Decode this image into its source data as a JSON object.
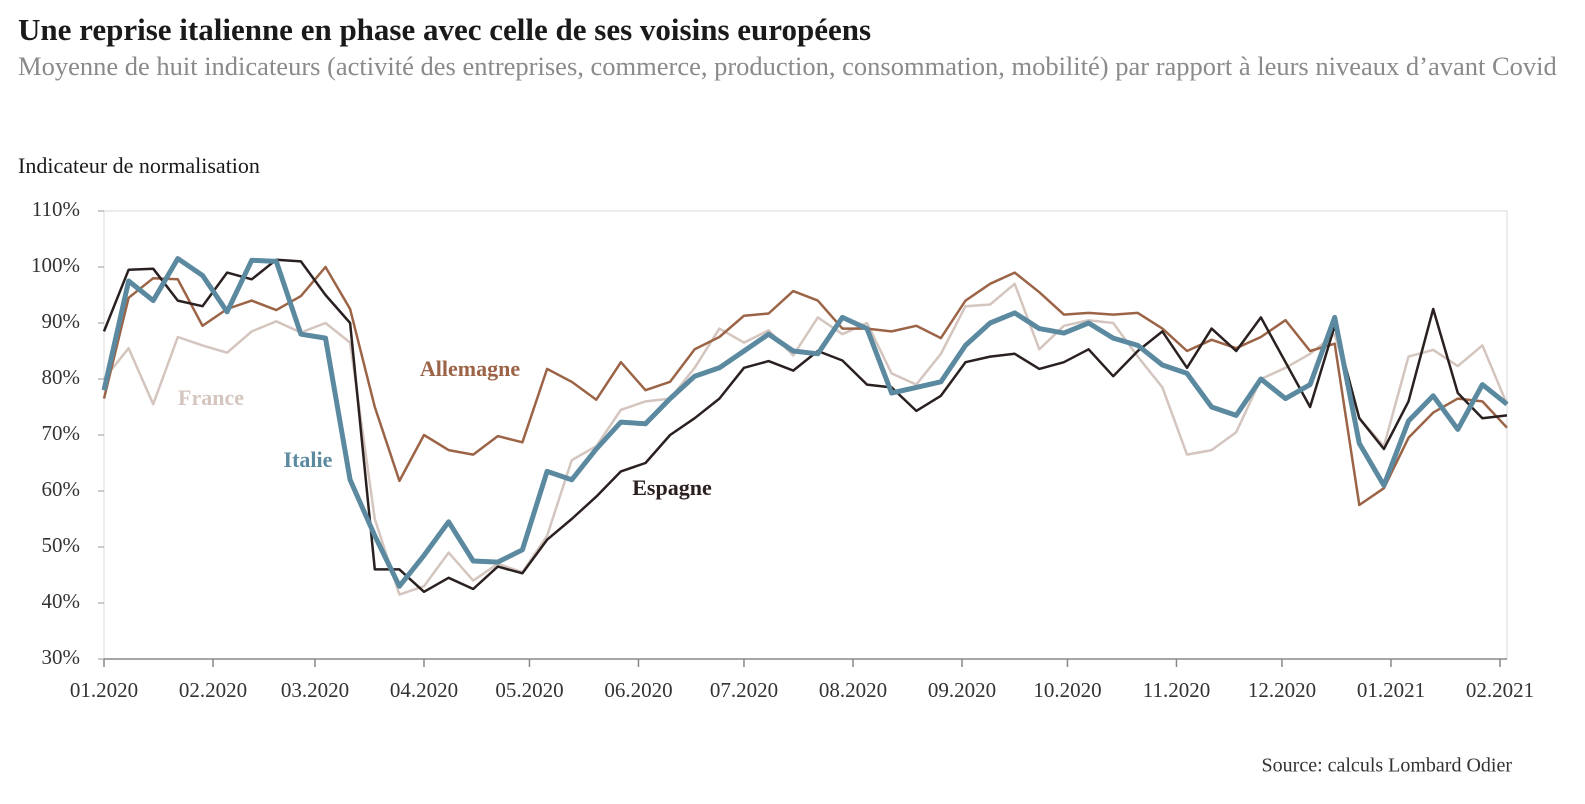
{
  "chart_data": {
    "type": "line",
    "title": "Une reprise italienne en phase avec celle de ses voisins européens",
    "subtitle": "Moyenne de huit indicateurs (activité des entreprises, commerce, production, consommation, mobilité) par rapport à leurs niveaux d’avant Covid",
    "y_axis_label": "Indicateur de normalisation",
    "source": "Source: calculs Lombard Odier",
    "x": [
      0,
      7,
      14,
      21,
      28,
      35,
      42,
      49,
      56,
      63,
      70,
      77,
      84,
      91,
      98,
      105,
      112,
      119,
      126,
      133,
      140,
      147,
      154,
      161,
      168,
      175,
      182,
      189,
      196,
      203,
      210,
      217,
      224,
      231,
      238,
      245,
      252,
      259,
      266,
      273,
      280,
      287,
      294,
      301,
      308,
      315,
      322,
      329,
      336,
      343,
      350,
      357,
      364,
      371,
      378,
      385,
      392,
      399
    ],
    "xlim": [
      0,
      399
    ],
    "xticks": [
      {
        "value": 0,
        "label": "01.2020"
      },
      {
        "value": 31,
        "label": "02.2020"
      },
      {
        "value": 60,
        "label": "03.2020"
      },
      {
        "value": 91,
        "label": "04.2020"
      },
      {
        "value": 121,
        "label": "05.2020"
      },
      {
        "value": 152,
        "label": "06.2020"
      },
      {
        "value": 182,
        "label": "07.2020"
      },
      {
        "value": 213,
        "label": "08.2020"
      },
      {
        "value": 244,
        "label": "09.2020"
      },
      {
        "value": 274,
        "label": "10.2020"
      },
      {
        "value": 305,
        "label": "11.2020"
      },
      {
        "value": 335,
        "label": "12.2020"
      },
      {
        "value": 366,
        "label": "01.2021"
      },
      {
        "value": 397,
        "label": "02.2021"
      }
    ],
    "ylim": [
      30,
      110
    ],
    "yticks": [
      {
        "value": 30,
        "label": "30%"
      },
      {
        "value": 40,
        "label": "40%"
      },
      {
        "value": 50,
        "label": "50%"
      },
      {
        "value": 60,
        "label": "60%"
      },
      {
        "value": 70,
        "label": "70%"
      },
      {
        "value": 80,
        "label": "80%"
      },
      {
        "value": 90,
        "label": "90%"
      },
      {
        "value": 100,
        "label": "100%"
      },
      {
        "value": 110,
        "label": "110%"
      }
    ],
    "series": [
      {
        "name": "France",
        "color": "#d4c5bf",
        "values": [
          80,
          85.5,
          75.5,
          87.5,
          86,
          84.7,
          88.5,
          90.3,
          88.3,
          90,
          86.5,
          55,
          41.5,
          43,
          49,
          44,
          47,
          45.5,
          52,
          65.5,
          68,
          74.5,
          76,
          76.5,
          82,
          89,
          86.5,
          88.7,
          84.2,
          91,
          88,
          90,
          81,
          79,
          84.5,
          93,
          93.3,
          97,
          85.3,
          89.5,
          90.5,
          90,
          84,
          78.5,
          66.5,
          67.3,
          70.5,
          80,
          82,
          84.5,
          88,
          73,
          68,
          84,
          85.2,
          82.3,
          86,
          75.5
        ]
      },
      {
        "name": "Allemagne",
        "color": "#9c6447",
        "values": [
          76.5,
          94.5,
          98,
          97.8,
          89.5,
          92.5,
          94,
          92.3,
          94.8,
          100,
          92.5,
          75,
          61.8,
          70,
          67.3,
          66.5,
          69.8,
          68.7,
          81.8,
          79.5,
          76.3,
          83,
          78,
          79.5,
          85.3,
          87.5,
          91.3,
          91.7,
          95.7,
          94,
          89,
          89,
          88.5,
          89.5,
          87.3,
          94,
          97,
          99,
          95.5,
          91.5,
          91.8,
          91.5,
          91.8,
          89,
          85,
          87,
          85.5,
          87.5,
          90.5,
          85,
          86.3,
          57.5,
          60.5,
          69.5,
          74,
          76.5,
          76,
          71.3
        ]
      },
      {
        "name": "Espagne",
        "color": "#2a2020",
        "values": [
          88.5,
          99.5,
          99.7,
          94,
          93,
          99,
          97.8,
          101.3,
          101,
          95,
          90,
          46,
          46,
          42,
          44.5,
          42.5,
          46.5,
          45.3,
          51.3,
          55,
          59,
          63.5,
          65,
          70,
          73,
          76.5,
          82,
          83.2,
          81.5,
          85,
          83.3,
          79,
          78.5,
          74.3,
          77,
          83,
          84,
          84.5,
          81.8,
          83,
          85.3,
          80.5,
          85,
          88.5,
          82,
          89,
          85,
          91,
          83,
          75,
          89.5,
          73,
          67.5,
          76,
          92.5,
          77.5,
          73,
          73.5
        ]
      },
      {
        "name": "Italie",
        "color": "#5b8aa0",
        "values": [
          78,
          97.5,
          94,
          101.5,
          98.5,
          92,
          101.2,
          101,
          88,
          87.3,
          62,
          52,
          43,
          48.5,
          54.5,
          47.5,
          47.3,
          49.5,
          63.5,
          62,
          67.5,
          72.3,
          72,
          76.5,
          80.5,
          82,
          85,
          88,
          85,
          84.5,
          91,
          89,
          77.5,
          78.5,
          79.5,
          86,
          90,
          91.8,
          89,
          88.2,
          90,
          87.3,
          86,
          82.5,
          81,
          75,
          73.5,
          80,
          76.5,
          79,
          91,
          68.5,
          61,
          72.5,
          77,
          71,
          79,
          75.5
        ]
      }
    ]
  }
}
